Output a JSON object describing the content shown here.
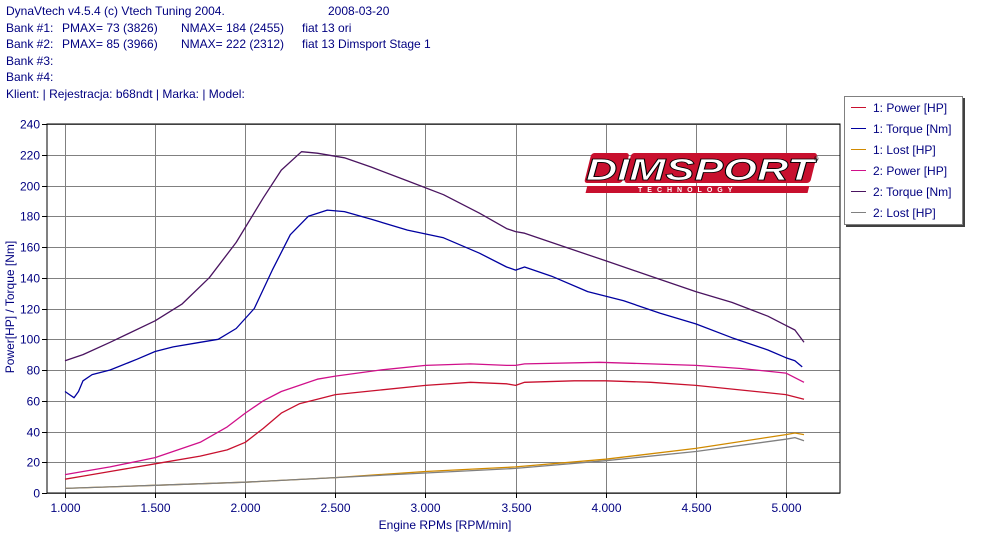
{
  "header": {
    "app_title": "DynaVtech v4.5.4 (c) Vtech Tuning 2004.",
    "date": "2008-03-20",
    "banks": [
      {
        "label": "Bank #1:",
        "pmax": "PMAX= 73 (3826)",
        "nmax": "NMAX= 184 (2455)",
        "name": "fiat 13 ori"
      },
      {
        "label": "Bank #2:",
        "pmax": "PMAX= 85 (3966)",
        "nmax": "NMAX= 222 (2312)",
        "name": "fiat 13 Dimsport Stage 1"
      },
      {
        "label": "Bank #3:",
        "pmax": "",
        "nmax": "",
        "name": ""
      },
      {
        "label": "Bank #4:",
        "pmax": "",
        "nmax": "",
        "name": ""
      }
    ],
    "client_line": "Klient:  | Rejestracja: b68ndt | Marka:  | Model:"
  },
  "logo": {
    "brand": "DIMSPORT",
    "tagline": "TECHNOLOGY"
  },
  "colors": {
    "grid": "#808080",
    "axis_text": "#000080",
    "frame": "#000000",
    "bank1_power": "#c8102e",
    "bank1_torque": "#0000a0",
    "bank1_lost": "#d08a00",
    "bank2_power": "#d0108a",
    "bank2_torque": "#4a1460",
    "bank2_lost": "#808080"
  },
  "chart_data": {
    "type": "line",
    "xlabel": "Engine RPMs [RPM/min]",
    "ylabel": "Power[HP] / Torque [Nm]",
    "xlim": [
      900,
      5300
    ],
    "ylim": [
      0,
      240
    ],
    "x_ticks": [
      1000,
      1500,
      2000,
      2500,
      3000,
      3500,
      4000,
      4500,
      5000
    ],
    "x_tick_labels": [
      "1.000",
      "1.500",
      "2.000",
      "2.500",
      "3.000",
      "3.500",
      "4.000",
      "4.500",
      "5.000"
    ],
    "y_ticks": [
      0,
      20,
      40,
      60,
      80,
      100,
      120,
      140,
      160,
      180,
      200,
      220,
      240
    ],
    "y_tick_labels": [
      "0",
      "20",
      "40",
      "60",
      "80",
      "100",
      "120",
      "140",
      "160",
      "180",
      "200",
      "220",
      "240"
    ],
    "grid": true,
    "legend_position": "right",
    "series": [
      {
        "name": "1: Power [HP]",
        "color": "#c8102e",
        "points": [
          [
            1000,
            9
          ],
          [
            1100,
            11
          ],
          [
            1250,
            14
          ],
          [
            1500,
            19
          ],
          [
            1750,
            24
          ],
          [
            1900,
            28
          ],
          [
            2000,
            33
          ],
          [
            2100,
            42
          ],
          [
            2200,
            52
          ],
          [
            2300,
            58
          ],
          [
            2400,
            61
          ],
          [
            2500,
            64
          ],
          [
            2750,
            67
          ],
          [
            3000,
            70
          ],
          [
            3250,
            72
          ],
          [
            3450,
            71
          ],
          [
            3500,
            70
          ],
          [
            3550,
            72
          ],
          [
            3826,
            73
          ],
          [
            4000,
            73
          ],
          [
            4250,
            72
          ],
          [
            4500,
            70
          ],
          [
            4750,
            67
          ],
          [
            5000,
            64
          ],
          [
            5100,
            61
          ]
        ]
      },
      {
        "name": "1: Torque [Nm]",
        "color": "#0000a0",
        "points": [
          [
            1000,
            66
          ],
          [
            1025,
            64
          ],
          [
            1050,
            62
          ],
          [
            1075,
            66
          ],
          [
            1100,
            73
          ],
          [
            1150,
            77
          ],
          [
            1250,
            80
          ],
          [
            1400,
            87
          ],
          [
            1500,
            92
          ],
          [
            1600,
            95
          ],
          [
            1750,
            98
          ],
          [
            1850,
            100
          ],
          [
            1950,
            107
          ],
          [
            2050,
            120
          ],
          [
            2150,
            145
          ],
          [
            2250,
            168
          ],
          [
            2350,
            180
          ],
          [
            2455,
            184
          ],
          [
            2550,
            183
          ],
          [
            2700,
            178
          ],
          [
            2900,
            171
          ],
          [
            3100,
            166
          ],
          [
            3300,
            156
          ],
          [
            3450,
            147
          ],
          [
            3500,
            145
          ],
          [
            3550,
            147
          ],
          [
            3700,
            141
          ],
          [
            3900,
            131
          ],
          [
            4100,
            125
          ],
          [
            4300,
            117
          ],
          [
            4500,
            110
          ],
          [
            4700,
            101
          ],
          [
            4900,
            93
          ],
          [
            5000,
            88
          ],
          [
            5050,
            86
          ],
          [
            5090,
            82
          ]
        ]
      },
      {
        "name": "1: Lost [HP]",
        "color": "#d08a00",
        "points": [
          [
            1000,
            3
          ],
          [
            1500,
            5
          ],
          [
            2000,
            7
          ],
          [
            2500,
            10
          ],
          [
            3000,
            14
          ],
          [
            3500,
            17
          ],
          [
            4000,
            22
          ],
          [
            4500,
            29
          ],
          [
            5000,
            38
          ],
          [
            5050,
            39
          ],
          [
            5100,
            38
          ]
        ]
      },
      {
        "name": "2: Power [HP]",
        "color": "#d0108a",
        "points": [
          [
            1000,
            12
          ],
          [
            1100,
            14
          ],
          [
            1250,
            17
          ],
          [
            1500,
            23
          ],
          [
            1750,
            33
          ],
          [
            1900,
            43
          ],
          [
            2000,
            52
          ],
          [
            2100,
            60
          ],
          [
            2200,
            66
          ],
          [
            2300,
            70
          ],
          [
            2400,
            74
          ],
          [
            2500,
            76
          ],
          [
            2750,
            80
          ],
          [
            3000,
            83
          ],
          [
            3250,
            84
          ],
          [
            3450,
            83
          ],
          [
            3500,
            83
          ],
          [
            3550,
            84
          ],
          [
            3966,
            85
          ],
          [
            4250,
            84
          ],
          [
            4500,
            83
          ],
          [
            4750,
            81
          ],
          [
            5000,
            78
          ],
          [
            5100,
            72
          ]
        ]
      },
      {
        "name": "2: Torque [Nm]",
        "color": "#4a1460",
        "points": [
          [
            1000,
            86
          ],
          [
            1100,
            90
          ],
          [
            1250,
            98
          ],
          [
            1500,
            112
          ],
          [
            1650,
            123
          ],
          [
            1800,
            140
          ],
          [
            1950,
            163
          ],
          [
            2100,
            192
          ],
          [
            2200,
            210
          ],
          [
            2312,
            222
          ],
          [
            2400,
            221
          ],
          [
            2550,
            218
          ],
          [
            2700,
            212
          ],
          [
            2900,
            203
          ],
          [
            3100,
            194
          ],
          [
            3300,
            182
          ],
          [
            3450,
            172
          ],
          [
            3500,
            170
          ],
          [
            3550,
            169
          ],
          [
            3750,
            161
          ],
          [
            4000,
            151
          ],
          [
            4250,
            141
          ],
          [
            4500,
            131
          ],
          [
            4700,
            124
          ],
          [
            4900,
            115
          ],
          [
            5000,
            109
          ],
          [
            5050,
            106
          ],
          [
            5100,
            98
          ]
        ]
      },
      {
        "name": "2: Lost [HP]",
        "color": "#808080",
        "points": [
          [
            1000,
            3
          ],
          [
            1500,
            5
          ],
          [
            2000,
            7
          ],
          [
            2500,
            10
          ],
          [
            3000,
            13
          ],
          [
            3500,
            16
          ],
          [
            4000,
            21
          ],
          [
            4500,
            27
          ],
          [
            5000,
            35
          ],
          [
            5050,
            36
          ],
          [
            5100,
            34
          ]
        ]
      }
    ]
  }
}
